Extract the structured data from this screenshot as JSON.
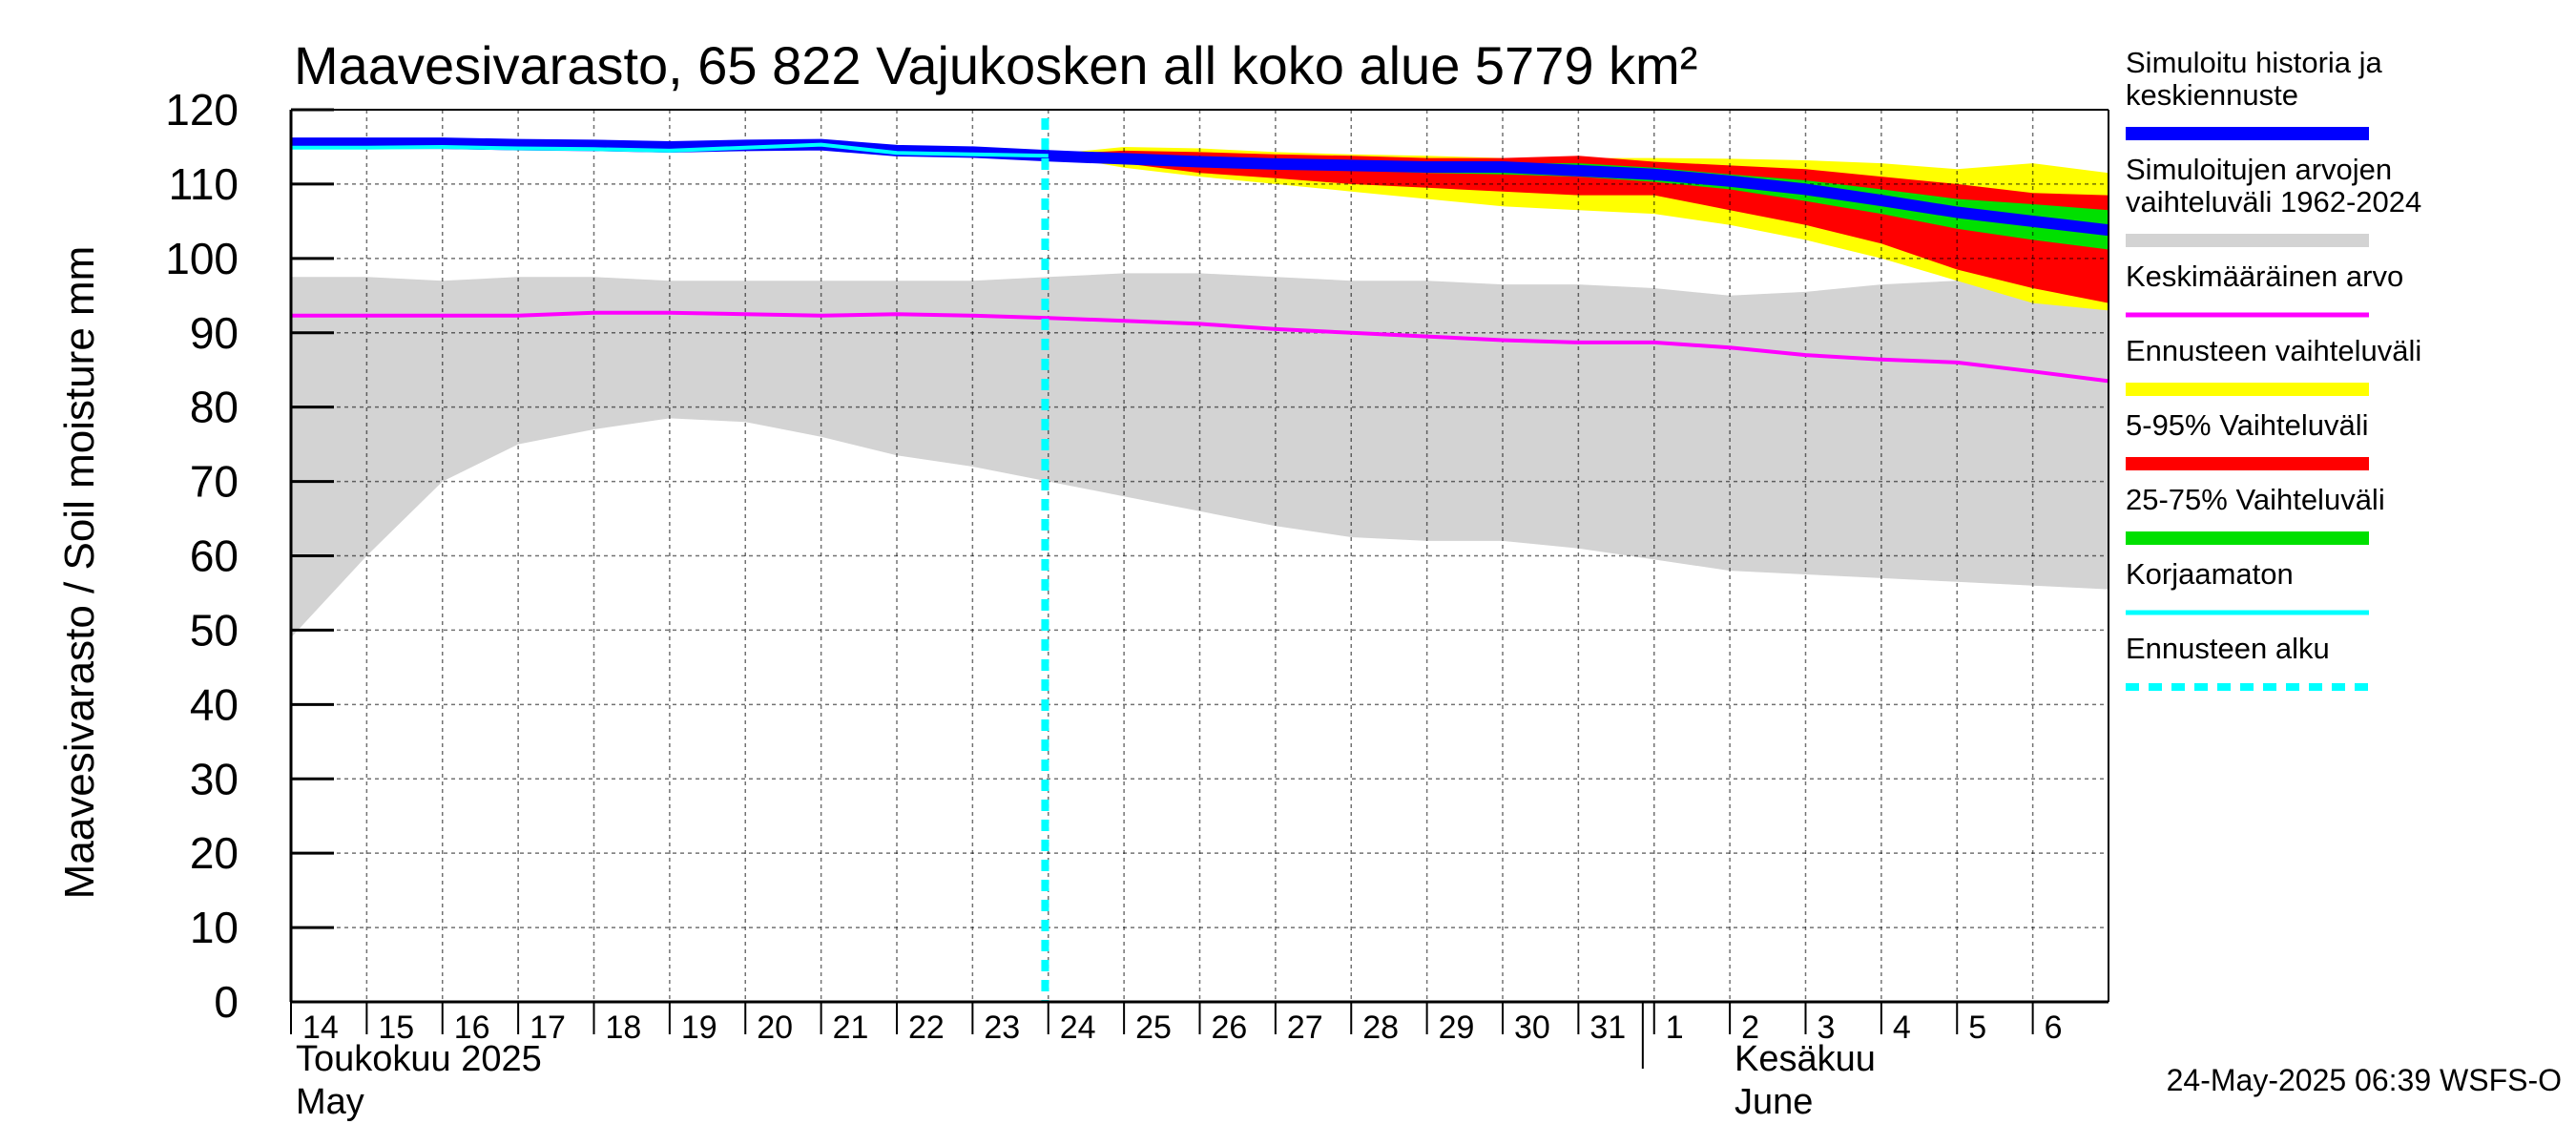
{
  "chart_data": {
    "type": "area",
    "title": "Maavesivarasto, 65 822 Vajukosken all koko alue 5779 km²",
    "ylabel": "Maavesivarasto / Soil moisture   mm",
    "ylim": [
      0,
      120
    ],
    "yticks": [
      0,
      10,
      20,
      30,
      40,
      50,
      60,
      70,
      80,
      90,
      100,
      110,
      120
    ],
    "x_range": [
      "2025-05-14",
      "2025-06-07"
    ],
    "grid": true,
    "legend_position": "right",
    "x_tick_labels": [
      "14",
      "15",
      "16",
      "17",
      "18",
      "19",
      "20",
      "21",
      "22",
      "23",
      "24",
      "25",
      "26",
      "27",
      "28",
      "29",
      "30",
      "31",
      "1",
      "2",
      "3",
      "4",
      "5",
      "6"
    ],
    "month_labels": {
      "may_fi": "Toukokuu  2025",
      "may_en": "May",
      "june_fi": "Kesäkuu",
      "june_en": "June"
    },
    "forecast_start": "2025-05-24",
    "timestamp": "24-May-2025 06:39 WSFS-O",
    "colors": {
      "history_band": "#d3d3d3",
      "mean": "#ff00ff",
      "simulated": "#0000ff",
      "uncorrected": "#00ffff",
      "forecast_range": "#ffff00",
      "p5_95": "#ff0000",
      "p25_75": "#00e000",
      "forecast_start": "#00ffff",
      "grid": "#000000"
    },
    "series": [
      {
        "name": "Simuloitujen arvojen vaihteluväli 1962-2024",
        "kind": "band",
        "x": [
          "2025-05-14",
          "2025-05-15",
          "2025-05-16",
          "2025-05-17",
          "2025-05-18",
          "2025-05-19",
          "2025-05-20",
          "2025-05-21",
          "2025-05-22",
          "2025-05-23",
          "2025-05-24",
          "2025-05-25",
          "2025-05-26",
          "2025-05-27",
          "2025-05-28",
          "2025-05-29",
          "2025-05-30",
          "2025-05-31",
          "2025-06-01",
          "2025-06-02",
          "2025-06-03",
          "2025-06-04",
          "2025-06-05",
          "2025-06-06",
          "2025-06-07"
        ],
        "upper": [
          97.5,
          97.5,
          97,
          97.5,
          97.5,
          97,
          97,
          97,
          97,
          97,
          97.5,
          98,
          98,
          97.5,
          97,
          97,
          96.5,
          96.5,
          96,
          95,
          95.5,
          96.5,
          97,
          97.5,
          97.5
        ],
        "lower": [
          49,
          60,
          70,
          75,
          77,
          78.5,
          78,
          76,
          73.5,
          72,
          70,
          68,
          66,
          64,
          62.5,
          62,
          62,
          61,
          59.5,
          58,
          57.5,
          57,
          56.5,
          56,
          55.5
        ]
      },
      {
        "name": "Keskimääräinen arvo",
        "kind": "line",
        "x": [
          "2025-05-14",
          "2025-05-15",
          "2025-05-16",
          "2025-05-17",
          "2025-05-18",
          "2025-05-19",
          "2025-05-20",
          "2025-05-21",
          "2025-05-22",
          "2025-05-23",
          "2025-05-24",
          "2025-05-25",
          "2025-05-26",
          "2025-05-27",
          "2025-05-28",
          "2025-05-29",
          "2025-05-30",
          "2025-05-31",
          "2025-06-01",
          "2025-06-02",
          "2025-06-03",
          "2025-06-04",
          "2025-06-05",
          "2025-06-06",
          "2025-06-07"
        ],
        "values": [
          92.3,
          92.3,
          92.3,
          92.3,
          92.7,
          92.7,
          92.5,
          92.3,
          92.5,
          92.3,
          92,
          91.6,
          91.2,
          90.5,
          90,
          89.5,
          89,
          88.7,
          88.7,
          88,
          87,
          86.4,
          86,
          84.8,
          83.5
        ]
      },
      {
        "name": "Ennusteen vaihteluväli",
        "kind": "band",
        "x": [
          "2025-05-24",
          "2025-05-25",
          "2025-05-26",
          "2025-05-27",
          "2025-05-28",
          "2025-05-29",
          "2025-05-30",
          "2025-05-31",
          "2025-06-01",
          "2025-06-02",
          "2025-06-03",
          "2025-06-04",
          "2025-06-05",
          "2025-06-06",
          "2025-06-07"
        ],
        "upper": [
          114,
          115,
          114.8,
          114.3,
          114,
          113.8,
          113.5,
          113.5,
          113.5,
          113.4,
          113.2,
          112.8,
          112,
          112.8,
          111.5
        ],
        "lower": [
          114,
          112.2,
          111,
          110,
          109,
          108,
          107,
          106.5,
          106,
          104.5,
          102.5,
          100,
          97,
          94,
          93
        ]
      },
      {
        "name": "5-95% Vaihteluväli",
        "kind": "band",
        "x": [
          "2025-05-24",
          "2025-05-25",
          "2025-05-26",
          "2025-05-27",
          "2025-05-28",
          "2025-05-29",
          "2025-05-30",
          "2025-05-31",
          "2025-06-01",
          "2025-06-02",
          "2025-06-03",
          "2025-06-04",
          "2025-06-05",
          "2025-06-06",
          "2025-06-07"
        ],
        "upper": [
          114,
          114.5,
          114.3,
          114,
          113.8,
          113.5,
          113.5,
          113.8,
          113,
          112.5,
          112,
          111,
          110,
          108.8,
          108.5
        ],
        "lower": [
          114,
          112.8,
          111.5,
          110.8,
          110,
          109.5,
          109,
          108.5,
          108.5,
          106.5,
          104.5,
          102,
          98.5,
          96,
          94
        ]
      },
      {
        "name": "25-75% Vaihteluväli",
        "kind": "band",
        "x": [
          "2025-05-24",
          "2025-05-25",
          "2025-05-26",
          "2025-05-27",
          "2025-05-28",
          "2025-05-29",
          "2025-05-30",
          "2025-05-31",
          "2025-06-01",
          "2025-06-02",
          "2025-06-03",
          "2025-06-04",
          "2025-06-05",
          "2025-06-06",
          "2025-06-07"
        ],
        "upper": [
          114,
          113.5,
          113.3,
          113,
          113,
          112.8,
          112.8,
          112.8,
          112.2,
          111.3,
          110.5,
          109.3,
          108,
          107.3,
          106.5
        ],
        "lower": [
          114,
          113.2,
          112.8,
          112.2,
          111.8,
          111.5,
          111.3,
          111,
          110.3,
          109.3,
          107.7,
          106,
          104,
          102.5,
          101.2
        ]
      },
      {
        "name": "Simuloitu historia ja keskiennuste",
        "kind": "line",
        "x": [
          "2025-05-14",
          "2025-05-15",
          "2025-05-16",
          "2025-05-17",
          "2025-05-18",
          "2025-05-19",
          "2025-05-20",
          "2025-05-21",
          "2025-05-22",
          "2025-05-23",
          "2025-05-24",
          "2025-05-25",
          "2025-05-26",
          "2025-05-27",
          "2025-05-28",
          "2025-05-29",
          "2025-05-30",
          "2025-05-31",
          "2025-06-01",
          "2025-06-02",
          "2025-06-03",
          "2025-06-04",
          "2025-06-05",
          "2025-06-06",
          "2025-06-07"
        ],
        "values": [
          115.5,
          115.5,
          115.5,
          115.3,
          115.2,
          115,
          115.2,
          115.3,
          114.5,
          114.3,
          113.8,
          113.4,
          113,
          112.7,
          112.5,
          112.3,
          112.3,
          111.8,
          111.3,
          110.4,
          109.3,
          107.8,
          106.2,
          105,
          103.8
        ]
      },
      {
        "name": "Korjaamaton",
        "kind": "line",
        "x": [
          "2025-05-14",
          "2025-05-15",
          "2025-05-16",
          "2025-05-17",
          "2025-05-18",
          "2025-05-19",
          "2025-05-20",
          "2025-05-21",
          "2025-05-22",
          "2025-05-23",
          "2025-05-24"
        ],
        "values": [
          114.9,
          114.9,
          115,
          114.8,
          114.7,
          114.5,
          114.9,
          115.3,
          114.2,
          114,
          113.8
        ]
      }
    ],
    "legend": [
      {
        "label": "Simuloitu historia ja\nkeskiennuste",
        "color": "#0000ff",
        "style": "thick"
      },
      {
        "label": "Simuloitujen arvojen\nvaihteluväli 1962-2024",
        "color": "#d3d3d3",
        "style": "thick"
      },
      {
        "label": "Keskimääräinen arvo",
        "color": "#ff00ff",
        "style": "thin"
      },
      {
        "label": "Ennusteen vaihteluväli",
        "color": "#ffff00",
        "style": "thick"
      },
      {
        "label": "5-95% Vaihteluväli",
        "color": "#ff0000",
        "style": "thick"
      },
      {
        "label": "25-75% Vaihteluväli",
        "color": "#00e000",
        "style": "thick"
      },
      {
        "label": "Korjaamaton",
        "color": "#00ffff",
        "style": "thin"
      },
      {
        "label": "Ennusteen alku",
        "color": "#00ffff",
        "style": "dashed"
      }
    ]
  }
}
